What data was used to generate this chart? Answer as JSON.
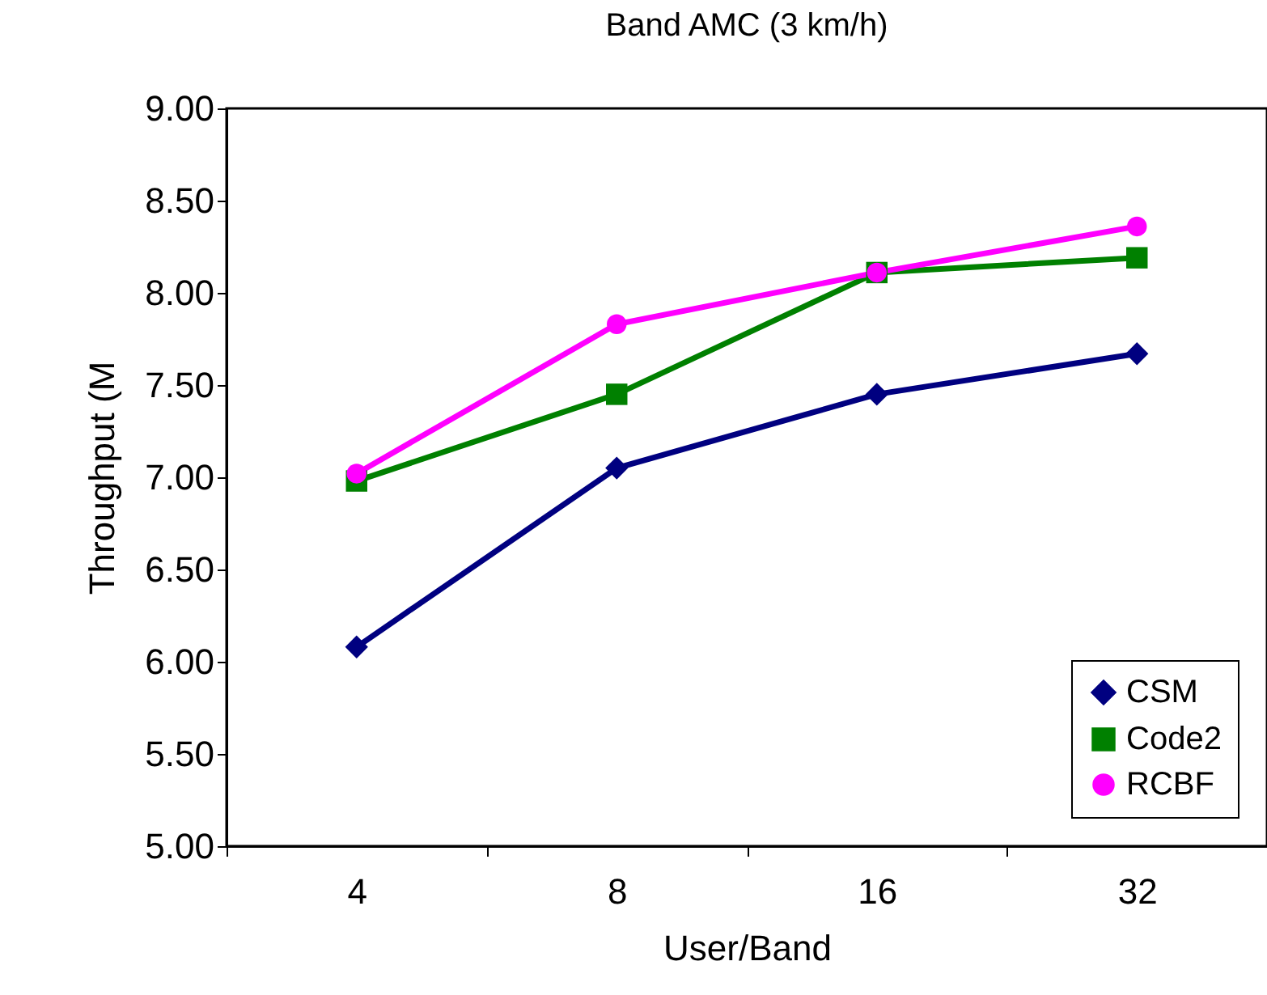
{
  "chart_data": {
    "type": "line",
    "title": "Band AMC (3 km/h)",
    "xlabel": "User/Band",
    "ylabel": "Throughput (M",
    "categories": [
      "4",
      "8",
      "16",
      "32"
    ],
    "series": [
      {
        "name": "CSM",
        "color": "#000080",
        "marker": "diamond",
        "values": [
          6.08,
          7.05,
          7.45,
          7.67
        ]
      },
      {
        "name": "Code2",
        "color": "#008000",
        "marker": "square",
        "values": [
          6.98,
          7.45,
          8.11,
          8.19
        ]
      },
      {
        "name": "RCBF",
        "color": "#ff00ff",
        "marker": "circle",
        "values": [
          7.02,
          7.83,
          8.11,
          8.36
        ]
      }
    ],
    "ylim": [
      5,
      9
    ],
    "yticks": [
      {
        "value": 5,
        "label": "5.00"
      },
      {
        "value": 5.5,
        "label": "5.50"
      },
      {
        "value": 6,
        "label": "6.00"
      },
      {
        "value": 6.5,
        "label": "6.50"
      },
      {
        "value": 7,
        "label": "7.00"
      },
      {
        "value": 7.5,
        "label": "7.50"
      },
      {
        "value": 8,
        "label": "8.00"
      },
      {
        "value": 8.5,
        "label": "8.50"
      },
      {
        "value": 9,
        "label": "9.00"
      }
    ],
    "grid": false,
    "legend": "bottom right",
    "line_style": "solid"
  }
}
